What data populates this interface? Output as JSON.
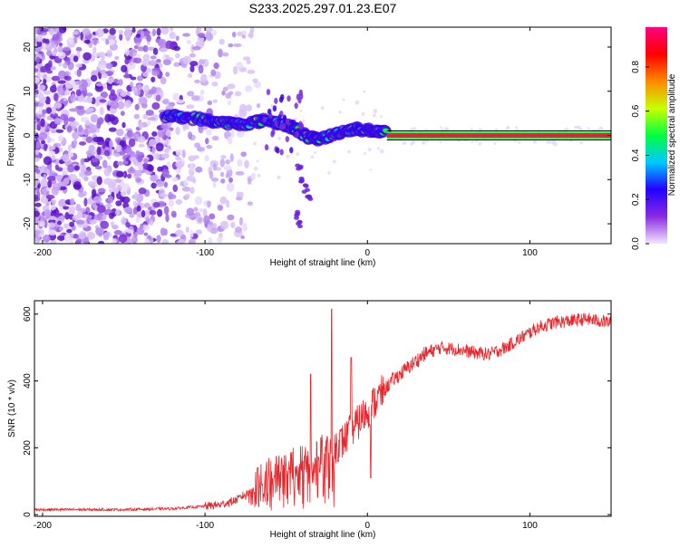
{
  "title": "S233.2025.297.01.23.E07",
  "chart_data": [
    {
      "type": "heatmap",
      "name": "spectrogram",
      "xlabel": "Height of straight line (km)",
      "ylabel": "Frequency (Hz)",
      "xlim": [
        -205,
        150
      ],
      "ylim": [
        -24.5,
        24.5
      ],
      "xticks": [
        -200,
        -100,
        0,
        100
      ],
      "yticks": [
        20,
        10,
        0,
        -10,
        -20
      ],
      "carrier": {
        "x_start": 12,
        "x_end": 150,
        "freq": 0
      },
      "wander_ridge": [
        {
          "x": -125,
          "f": 4.5
        },
        {
          "x": -115,
          "f": 4.2
        },
        {
          "x": -105,
          "f": 3.8
        },
        {
          "x": -95,
          "f": 3.2
        },
        {
          "x": -85,
          "f": 2.8
        },
        {
          "x": -78,
          "f": 2.5
        },
        {
          "x": -70,
          "f": 3.0
        },
        {
          "x": -62,
          "f": 3.5
        },
        {
          "x": -55,
          "f": 2.8
        },
        {
          "x": -48,
          "f": 2.0
        },
        {
          "x": -42,
          "f": 1.0
        },
        {
          "x": -36,
          "f": -0.5
        },
        {
          "x": -30,
          "f": -0.8
        },
        {
          "x": -22,
          "f": 0.0
        },
        {
          "x": -15,
          "f": 1.0
        },
        {
          "x": -8,
          "f": 1.5
        },
        {
          "x": 0,
          "f": 1.2
        },
        {
          "x": 5,
          "f": 1.0
        },
        {
          "x": 12,
          "f": 0.5
        }
      ],
      "secondary_branch": [
        {
          "x": -42,
          "f": -7
        },
        {
          "x": -40,
          "f": -10
        },
        {
          "x": -38,
          "f": -12
        },
        {
          "x": -36,
          "f": -14
        },
        {
          "x": -43,
          "f": -18
        },
        {
          "x": -42,
          "f": -20
        }
      ],
      "colorbar": {
        "label": "Normalized spectral amplitude",
        "ticks": [
          0.0,
          0.2,
          0.4,
          0.6,
          0.8
        ],
        "tick_labels": [
          "0.0",
          "0.2",
          "0.4",
          "0.6",
          "0.8"
        ],
        "range": [
          0,
          0.98
        ],
        "colors": [
          "#f2e6ff",
          "#8a2be2",
          "#2200ff",
          "#00c8ff",
          "#00ff40",
          "#c8ff00",
          "#ff8800",
          "#ff0000",
          "#ff007f"
        ]
      }
    },
    {
      "type": "line",
      "name": "snr",
      "xlabel": "Height of straight line (km)",
      "ylabel": "SNR (10 * v/v)",
      "xlim": [
        -205,
        150
      ],
      "ylim": [
        -5,
        640
      ],
      "xticks": [
        -200,
        -100,
        0,
        100
      ],
      "yticks": [
        0,
        200,
        400,
        600
      ],
      "color": "#e8262b",
      "trend": [
        {
          "x": -205,
          "y": 15
        },
        {
          "x": -150,
          "y": 15
        },
        {
          "x": -120,
          "y": 18
        },
        {
          "x": -100,
          "y": 25
        },
        {
          "x": -90,
          "y": 30
        },
        {
          "x": -80,
          "y": 45
        },
        {
          "x": -70,
          "y": 80
        },
        {
          "x": -60,
          "y": 120
        },
        {
          "x": -50,
          "y": 140
        },
        {
          "x": -40,
          "y": 160
        },
        {
          "x": -30,
          "y": 180
        },
        {
          "x": -22,
          "y": 200
        },
        {
          "x": -15,
          "y": 220
        },
        {
          "x": -5,
          "y": 280
        },
        {
          "x": 5,
          "y": 340
        },
        {
          "x": 15,
          "y": 400
        },
        {
          "x": 25,
          "y": 440
        },
        {
          "x": 35,
          "y": 480
        },
        {
          "x": 45,
          "y": 500
        },
        {
          "x": 55,
          "y": 495
        },
        {
          "x": 65,
          "y": 485
        },
        {
          "x": 75,
          "y": 480
        },
        {
          "x": 85,
          "y": 500
        },
        {
          "x": 95,
          "y": 530
        },
        {
          "x": 105,
          "y": 560
        },
        {
          "x": 115,
          "y": 575
        },
        {
          "x": 125,
          "y": 580
        },
        {
          "x": 135,
          "y": 585
        },
        {
          "x": 150,
          "y": 575
        }
      ],
      "spikes": [
        {
          "x": -22,
          "y": 615
        },
        {
          "x": -35,
          "y": 420
        },
        {
          "x": 2,
          "y": 110
        },
        {
          "x": -10,
          "y": 470
        }
      ]
    }
  ]
}
